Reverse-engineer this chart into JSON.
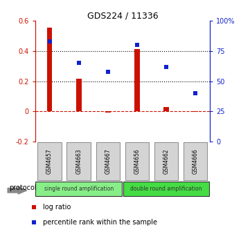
{
  "title": "GDS224 / 11336",
  "samples": [
    "GSM4657",
    "GSM4663",
    "GSM4667",
    "GSM4656",
    "GSM4662",
    "GSM4666"
  ],
  "log_ratio": [
    0.555,
    0.215,
    -0.01,
    0.415,
    0.03,
    -0.005
  ],
  "percentile_rank": [
    83,
    65,
    58,
    80,
    62,
    40
  ],
  "bar_color": "#cc1100",
  "dot_color": "#1122cc",
  "ylim_left": [
    -0.2,
    0.6
  ],
  "ylim_right": [
    0,
    100
  ],
  "yticks_left": [
    -0.2,
    0.0,
    0.2,
    0.4,
    0.6
  ],
  "ytick_labels_left": [
    "-0.2",
    "0",
    "0.2",
    "0.4",
    "0.6"
  ],
  "yticks_right": [
    0,
    25,
    50,
    75,
    100
  ],
  "ytick_labels_right": [
    "0",
    "25",
    "50",
    "75",
    "100%"
  ],
  "hlines_dotted": [
    0.2,
    0.4
  ],
  "protocol_groups": [
    {
      "label": "single round amplification",
      "indices": [
        0,
        1,
        2
      ],
      "color": "#88ee88"
    },
    {
      "label": "double round amplification",
      "indices": [
        3,
        4,
        5
      ],
      "color": "#44dd44"
    }
  ],
  "protocol_label": "protocol",
  "legend_items": [
    {
      "label": "log ratio",
      "color": "#cc1100"
    },
    {
      "label": "percentile rank within the sample",
      "color": "#1122cc"
    }
  ],
  "background_color": "#ffffff",
  "tick_color_left": "#cc1100",
  "tick_color_right": "#1122cc"
}
